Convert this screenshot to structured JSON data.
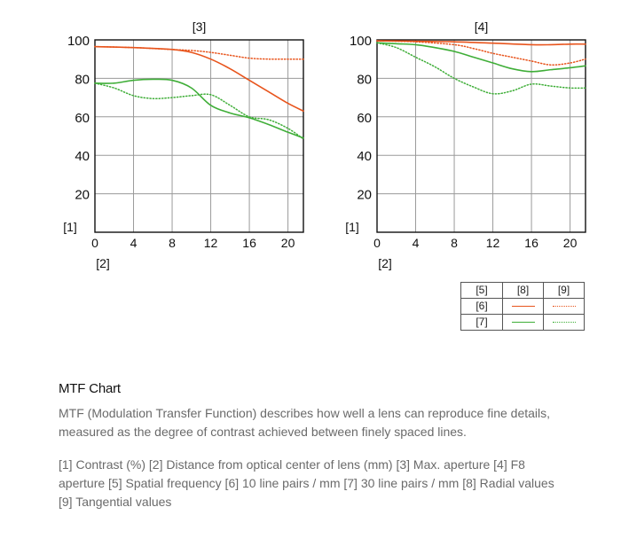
{
  "chart_data": [
    {
      "type": "line",
      "title": "[3]",
      "ylabel": "[1]",
      "xlabel": "[2]",
      "xlim": [
        0,
        21.6
      ],
      "ylim": [
        0,
        100
      ],
      "xticks": [
        0,
        4,
        8,
        12,
        16,
        20
      ],
      "yticks": [
        20,
        40,
        60,
        80,
        100
      ],
      "grid": true,
      "series": [
        {
          "name": "[6] [8]",
          "color": "#e8541c",
          "dash": "solid",
          "x": [
            0,
            4,
            8,
            10,
            12,
            14,
            16,
            18,
            20,
            21.6
          ],
          "y": [
            96.5,
            96,
            95,
            93.5,
            90,
            85,
            79,
            73,
            67,
            63
          ]
        },
        {
          "name": "[6] [9]",
          "color": "#e8541c",
          "dash": "dotted",
          "x": [
            0,
            4,
            8,
            10,
            12,
            14,
            16,
            18,
            20,
            21.6
          ],
          "y": [
            96.5,
            96,
            95,
            94.5,
            93.5,
            92,
            90.5,
            90,
            90,
            90
          ]
        },
        {
          "name": "[7] [8]",
          "color": "#3fae38",
          "dash": "solid",
          "x": [
            0,
            2,
            4,
            6,
            8,
            10,
            12,
            14,
            16,
            18,
            20,
            21.6
          ],
          "y": [
            77.5,
            77.5,
            79,
            79.5,
            79,
            75,
            66,
            62,
            59.5,
            56,
            52,
            49
          ]
        },
        {
          "name": "[7] [9]",
          "color": "#3fae38",
          "dash": "dotted",
          "x": [
            0,
            2,
            4,
            6,
            8,
            10,
            12,
            14,
            16,
            18,
            20,
            21.6
          ],
          "y": [
            77.5,
            75,
            71,
            69.5,
            70,
            71,
            71.5,
            66,
            60,
            58.5,
            54,
            48.5
          ]
        }
      ]
    },
    {
      "type": "line",
      "title": "[4]",
      "ylabel": "[1]",
      "xlabel": "[2]",
      "xlim": [
        0,
        21.6
      ],
      "ylim": [
        0,
        100
      ],
      "xticks": [
        0,
        4,
        8,
        12,
        16,
        20
      ],
      "yticks": [
        20,
        40,
        60,
        80,
        100
      ],
      "grid": true,
      "series": [
        {
          "name": "[6] [8]",
          "color": "#e8541c",
          "dash": "solid",
          "x": [
            0,
            4,
            8,
            12,
            16,
            18,
            20,
            21.6
          ],
          "y": [
            99.5,
            99.3,
            99,
            98.3,
            97.5,
            97.5,
            97.8,
            97.8
          ]
        },
        {
          "name": "[6] [9]",
          "color": "#e8541c",
          "dash": "dotted",
          "x": [
            0,
            4,
            8,
            10,
            12,
            14,
            16,
            18,
            20,
            21.6
          ],
          "y": [
            99.5,
            99,
            97.5,
            95.5,
            93,
            91,
            89,
            87,
            88,
            90
          ]
        },
        {
          "name": "[7] [8]",
          "color": "#3fae38",
          "dash": "solid",
          "x": [
            0,
            2,
            4,
            6,
            8,
            10,
            12,
            14,
            16,
            18,
            20,
            21.6
          ],
          "y": [
            98.5,
            98,
            97.5,
            96,
            94,
            91,
            88,
            85,
            83.5,
            84.5,
            85.5,
            86.5
          ]
        },
        {
          "name": "[7] [9]",
          "color": "#3fae38",
          "dash": "dotted",
          "x": [
            0,
            2,
            4,
            6,
            8,
            10,
            12,
            14,
            16,
            18,
            20,
            21.6
          ],
          "y": [
            98.5,
            96,
            91,
            86,
            80,
            75.5,
            72,
            73.5,
            77,
            76,
            75,
            75
          ]
        }
      ]
    }
  ],
  "legend": {
    "header": [
      "[5]",
      "[8]",
      "[9]"
    ],
    "rows": [
      {
        "label": "[6]",
        "color": "#e8541c"
      },
      {
        "label": "[7]",
        "color": "#3fae38"
      }
    ]
  },
  "description": {
    "heading": "MTF Chart",
    "paragraph1": "MTF (Modulation Transfer Function) describes how well a lens can reproduce fine details, measured as the degree of contrast achieved between finely spaced lines.",
    "paragraph2": "[1] Contrast (%)  [2] Distance from optical center of lens (mm)  [3] Max. aperture  [4] F8 aperture  [5] Spatial frequency  [6] 10 line pairs / mm  [7] 30 line pairs / mm  [8] Radial values  [9] Tangential values"
  }
}
